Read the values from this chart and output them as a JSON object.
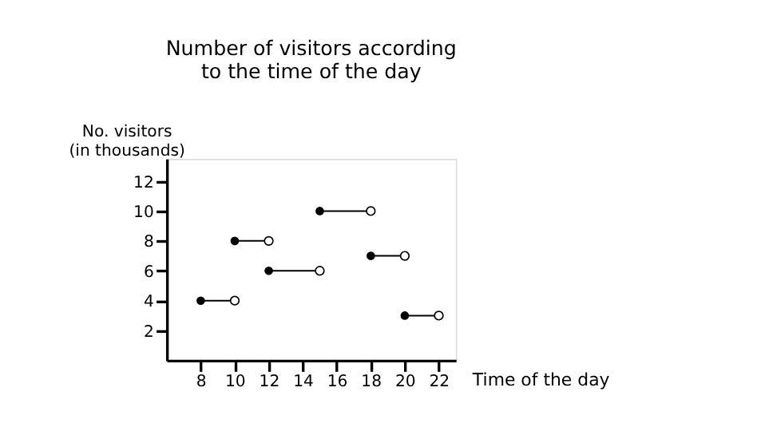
{
  "chart_data": {
    "type": "line",
    "title": "Number of visitors according\nto the time of the day",
    "xlabel": "Time of the day",
    "ylabel": "No. visitors\n(in thousands)",
    "xlim": [
      6,
      23
    ],
    "xticks": [
      8,
      10,
      12,
      14,
      16,
      18,
      20,
      22
    ],
    "ylim": [
      0,
      13.5
    ],
    "yticks": [
      2,
      4,
      6,
      8,
      10,
      12
    ],
    "grid": false,
    "marker": "circle",
    "line_style": "solid",
    "series": [
      {
        "x": [
          8,
          10
        ],
        "values": [
          4,
          4
        ],
        "color": "#000000"
      },
      {
        "x": [
          10,
          12
        ],
        "values": [
          8,
          8
        ],
        "color": "#000000"
      },
      {
        "x": [
          12,
          15
        ],
        "values": [
          6,
          6
        ],
        "color": "#000000"
      },
      {
        "x": [
          15,
          18
        ],
        "values": [
          10,
          10
        ],
        "color": "#000000"
      },
      {
        "x": [
          18,
          20
        ],
        "values": [
          7,
          7
        ],
        "color": "#000000"
      },
      {
        "x": [
          20,
          22
        ],
        "values": [
          3,
          3
        ],
        "color": "#000000"
      }
    ]
  }
}
